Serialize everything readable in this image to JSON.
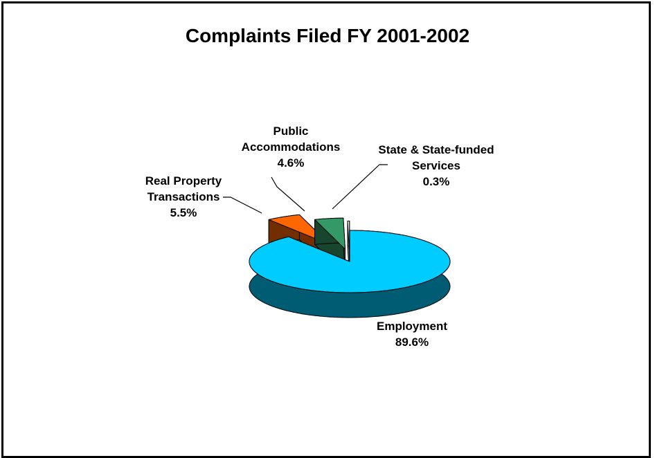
{
  "chart_data": {
    "type": "pie3d",
    "title": "Complaints Filed FY 2001-2002",
    "categories": [
      "Employment",
      "Real Property Transactions",
      "Public Accommodations",
      "State & State-funded Services"
    ],
    "values": [
      89.6,
      5.5,
      4.6,
      0.3
    ],
    "value_labels": [
      "89.6%",
      "5.5%",
      "4.6%",
      "0.3%"
    ],
    "colors": [
      "#00ccff",
      "#ff6600",
      "#339966",
      "#ffffff"
    ]
  }
}
